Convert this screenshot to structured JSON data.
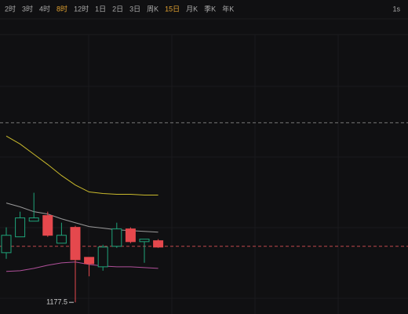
{
  "toolbar": {
    "intervals": [
      {
        "label": "2时",
        "active": false
      },
      {
        "label": "3时",
        "active": false
      },
      {
        "label": "4时",
        "active": false
      },
      {
        "label": "8时",
        "active": true
      },
      {
        "label": "12时",
        "active": false
      },
      {
        "label": "1日",
        "active": false
      },
      {
        "label": "2日",
        "active": false
      },
      {
        "label": "3日",
        "active": false
      },
      {
        "label": "周K",
        "active": false
      },
      {
        "label": "15日",
        "active": true
      },
      {
        "label": "月K",
        "active": false
      },
      {
        "label": "季K",
        "active": false
      },
      {
        "label": "年K",
        "active": false
      }
    ],
    "right": "1s"
  },
  "chart_data": {
    "type": "candlestick",
    "categories": [
      null,
      null,
      null,
      null,
      null,
      null,
      null,
      null,
      null,
      null,
      null,
      null
    ],
    "open": [
      1209.5,
      1219.7,
      1229.8,
      1233.4,
      1215.6,
      1225.8,
      1206.5,
      1200.4,
      1213.6,
      1224.8,
      1216.6,
      1217.2
    ],
    "high": [
      1225.8,
      1235.9,
      1248.1,
      1235.9,
      1228.8,
      1226.8,
      1206.5,
      1214.6,
      1228.8,
      1225.8,
      1218.2,
      1218.2
    ],
    "low": [
      1205.5,
      1219.7,
      1229.8,
      1219.7,
      1215.6,
      1177.5,
      1194.3,
      1197.9,
      1212.6,
      1215.6,
      1203.0,
      1212.6
    ],
    "close": [
      1220.7,
      1231.9,
      1231.9,
      1220.7,
      1220.7,
      1205.0,
      1202.4,
      1213.1,
      1224.8,
      1216.6,
      1218.2,
      1213.1
    ],
    "low_labels": [
      null,
      null,
      null,
      null,
      null,
      "1177.5",
      null,
      null,
      null,
      null,
      null,
      null
    ],
    "up_color": "#1fa37a",
    "down_color": "#e5484d",
    "lines": [
      {
        "color": "#c9b92c",
        "values": [
          1284.6,
          1279.5,
          1272.9,
          1266.3,
          1259.2,
          1253.1,
          1248.6,
          1247.6,
          1247.1,
          1247.1,
          1246.6,
          1246.6
        ]
      },
      {
        "color": "#9a9a9a",
        "values": [
          1241.5,
          1239.0,
          1235.9,
          1234.4,
          1231.3,
          1228.8,
          1226.3,
          1225.3,
          1224.2,
          1223.7,
          1223.2,
          1222.7
        ]
      },
      {
        "color": "#b0509a",
        "values": [
          1197.4,
          1197.9,
          1199.4,
          1201.4,
          1202.9,
          1203.5,
          1201.9,
          1200.9,
          1200.4,
          1200.4,
          1199.9,
          1199.4
        ]
      }
    ],
    "reference_lines": [
      {
        "value": 1293.2,
        "color": "#777"
      },
      {
        "value": 1213.6,
        "color": "#c0474c"
      }
    ],
    "ylim": [
      1170,
      1350
    ]
  }
}
